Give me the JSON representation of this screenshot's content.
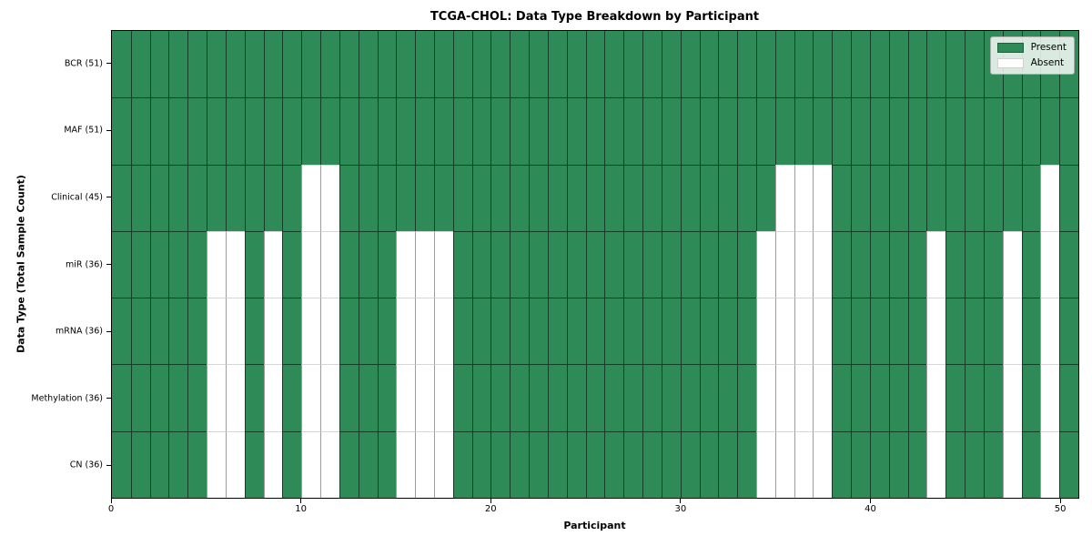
{
  "chart_data": {
    "type": "heatmap",
    "title": "TCGA-CHOL: Data Type Breakdown by Participant",
    "xlabel": "Participant",
    "ylabel": "Data Type (Total Sample Count)",
    "n_participants": 51,
    "x_axis_range": [
      0,
      51
    ],
    "x_ticks": [
      0,
      10,
      20,
      30,
      40,
      50
    ],
    "cell_states": [
      "Present",
      "Absent"
    ],
    "colors": {
      "present": "#2E8B57",
      "absent": "#ffffff"
    },
    "legend": {
      "position": "upper right",
      "entries": [
        {
          "label": "Present",
          "key": "present"
        },
        {
          "label": "Absent",
          "key": "absent"
        }
      ]
    },
    "rows": [
      {
        "label": "BCR (51)",
        "data_type": "BCR",
        "present_count": 51,
        "absent_participants": []
      },
      {
        "label": "MAF (51)",
        "data_type": "MAF",
        "present_count": 51,
        "absent_participants": []
      },
      {
        "label": "Clinical (45)",
        "data_type": "Clinical",
        "present_count": 45,
        "absent_participants": [
          10,
          11,
          35,
          36,
          37,
          49
        ]
      },
      {
        "label": "miR (36)",
        "data_type": "miR",
        "present_count": 36,
        "absent_participants": [
          5,
          6,
          8,
          10,
          11,
          15,
          16,
          17,
          34,
          35,
          36,
          37,
          43,
          47,
          49
        ]
      },
      {
        "label": "mRNA (36)",
        "data_type": "mRNA",
        "present_count": 36,
        "absent_participants": [
          5,
          6,
          8,
          10,
          11,
          15,
          16,
          17,
          34,
          35,
          36,
          37,
          43,
          47,
          49
        ]
      },
      {
        "label": "Methylation (36)",
        "data_type": "Methylation",
        "present_count": 36,
        "absent_participants": [
          5,
          6,
          8,
          10,
          11,
          15,
          16,
          17,
          34,
          35,
          36,
          37,
          43,
          47,
          49
        ]
      },
      {
        "label": "CN (36)",
        "data_type": "CN",
        "present_count": 36,
        "absent_participants": [
          5,
          6,
          8,
          10,
          11,
          15,
          16,
          17,
          34,
          35,
          36,
          37,
          43,
          47,
          49
        ]
      }
    ]
  }
}
